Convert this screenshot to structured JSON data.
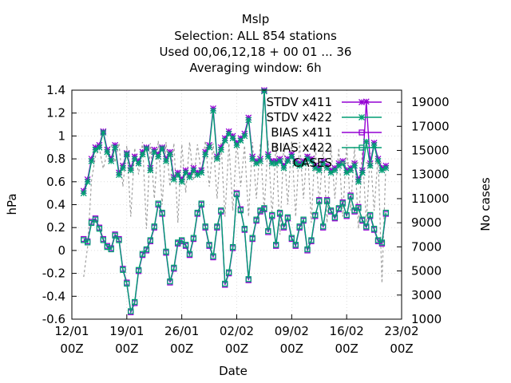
{
  "chart_data": {
    "type": "line",
    "title_lines": [
      "Mslp",
      "Selection: ALL    854 stations",
      "Used  00,06,12,18 + 00 01 ... 36",
      "Averaging window:  6h"
    ],
    "xlabel": "Date",
    "ylabel": "hPa",
    "y2label": "No cases",
    "x_ticks": [
      {
        "value": 0,
        "line1": "12/01",
        "line2": "00Z"
      },
      {
        "value": 7,
        "line1": "19/01",
        "line2": "00Z"
      },
      {
        "value": 14,
        "line1": "26/01",
        "line2": "00Z"
      },
      {
        "value": 21,
        "line1": "02/02",
        "line2": "00Z"
      },
      {
        "value": 28,
        "line1": "09/02",
        "line2": "00Z"
      },
      {
        "value": 35,
        "line1": "16/02",
        "line2": "00Z"
      },
      {
        "value": 42,
        "line1": "23/02",
        "line2": "00Z"
      }
    ],
    "xlim": [
      0,
      42
    ],
    "ylim": [
      -0.6,
      1.4
    ],
    "y_ticks": [
      "-0.6",
      "-0.4",
      "-0.2",
      "0",
      "0.2",
      "0.4",
      "0.6",
      "0.8",
      "1",
      "1.2",
      "1.4"
    ],
    "y2lim": [
      1000,
      20000
    ],
    "y2_ticks": [
      "1000",
      "3000",
      "5000",
      "7000",
      "9000",
      "11000",
      "13000",
      "15000",
      "17000",
      "19000"
    ],
    "legend_position": "top-right",
    "series": [
      {
        "name": "STDV x411",
        "color": "#9400d3",
        "marker": "star",
        "axis": "y1",
        "x": [
          1.5,
          2,
          2.5,
          3,
          3.5,
          4,
          4.5,
          5,
          5.5,
          6,
          6.5,
          7,
          7.5,
          8,
          8.5,
          9,
          9.5,
          10,
          10.5,
          11,
          11.5,
          12,
          12.5,
          13,
          13.5,
          14,
          14.5,
          15,
          15.5,
          16,
          16.5,
          17,
          17.5,
          18,
          18.5,
          19,
          19.5,
          20,
          20.5,
          21,
          21.5,
          22,
          22.5,
          23,
          23.5,
          24,
          24.5,
          25,
          25.5,
          26,
          26.5,
          27,
          27.5,
          28,
          28.5,
          29,
          29.5,
          30,
          30.5,
          31,
          31.5,
          32,
          32.5,
          33,
          33.5,
          34,
          34.5,
          35,
          35.5,
          36,
          36.5,
          37,
          37.5,
          38,
          38.5,
          39,
          39.5,
          40
        ],
        "values": [
          0.52,
          0.62,
          0.8,
          0.9,
          0.92,
          1.04,
          0.88,
          0.8,
          0.92,
          0.68,
          0.74,
          0.85,
          0.72,
          0.82,
          0.78,
          0.86,
          0.9,
          0.72,
          0.88,
          0.84,
          0.9,
          0.8,
          0.86,
          0.64,
          0.68,
          0.62,
          0.7,
          0.66,
          0.72,
          0.68,
          0.7,
          0.86,
          0.92,
          1.24,
          0.82,
          0.9,
          0.98,
          1.04,
          1.0,
          0.94,
          0.98,
          1.02,
          1.16,
          0.82,
          0.78,
          0.8,
          1.4,
          0.84,
          0.78,
          0.78,
          0.8,
          0.74,
          0.8,
          0.84,
          0.78,
          0.76,
          0.78,
          0.82,
          0.8,
          0.74,
          0.72,
          0.78,
          0.74,
          0.7,
          0.72,
          0.76,
          0.78,
          0.7,
          0.72,
          0.76,
          0.62,
          0.7,
          1.3,
          0.76,
          0.94,
          0.8,
          0.72,
          0.74
        ]
      },
      {
        "name": "STDV x422",
        "color": "#009e73",
        "marker": "star",
        "axis": "y1",
        "x": [
          1.5,
          2,
          2.5,
          3,
          3.5,
          4,
          4.5,
          5,
          5.5,
          6,
          6.5,
          7,
          7.5,
          8,
          8.5,
          9,
          9.5,
          10,
          10.5,
          11,
          11.5,
          12,
          12.5,
          13,
          13.5,
          14,
          14.5,
          15,
          15.5,
          16,
          16.5,
          17,
          17.5,
          18,
          18.5,
          19,
          19.5,
          20,
          20.5,
          21,
          21.5,
          22,
          22.5,
          23,
          23.5,
          24,
          24.5,
          25,
          25.5,
          26,
          26.5,
          27,
          27.5,
          28,
          28.5,
          29,
          29.5,
          30,
          30.5,
          31,
          31.5,
          32,
          32.5,
          33,
          33.5,
          34,
          34.5,
          35,
          35.5,
          36,
          36.5,
          37,
          37.5,
          38,
          38.5,
          39,
          39.5,
          40
        ],
        "values": [
          0.5,
          0.6,
          0.78,
          0.88,
          0.9,
          1.03,
          0.86,
          0.78,
          0.9,
          0.66,
          0.72,
          0.84,
          0.7,
          0.8,
          0.76,
          0.84,
          0.89,
          0.7,
          0.86,
          0.82,
          0.89,
          0.78,
          0.84,
          0.62,
          0.66,
          0.6,
          0.68,
          0.64,
          0.7,
          0.66,
          0.68,
          0.84,
          0.9,
          1.22,
          0.8,
          0.88,
          0.96,
          1.02,
          0.98,
          0.92,
          0.96,
          1.0,
          1.14,
          0.8,
          0.76,
          0.78,
          1.39,
          0.82,
          0.76,
          0.76,
          0.78,
          0.72,
          0.78,
          0.82,
          0.76,
          0.74,
          0.76,
          0.8,
          0.78,
          0.72,
          0.7,
          0.76,
          0.72,
          0.68,
          0.7,
          0.74,
          0.76,
          0.68,
          0.7,
          0.74,
          0.6,
          0.68,
          0.95,
          0.74,
          0.92,
          0.78,
          0.7,
          0.72
        ]
      },
      {
        "name": "BIAS x411",
        "color": "#9400d3",
        "marker": "square",
        "axis": "y1",
        "x": [
          1.5,
          2,
          2.5,
          3,
          3.5,
          4,
          4.5,
          5,
          5.5,
          6,
          6.5,
          7,
          7.5,
          8,
          8.5,
          9,
          9.5,
          10,
          10.5,
          11,
          11.5,
          12,
          12.5,
          13,
          13.5,
          14,
          14.5,
          15,
          15.5,
          16,
          16.5,
          17,
          17.5,
          18,
          18.5,
          19,
          19.5,
          20,
          20.5,
          21,
          21.5,
          22,
          22.5,
          23,
          23.5,
          24,
          24.5,
          25,
          25.5,
          26,
          26.5,
          27,
          27.5,
          28,
          28.5,
          29,
          29.5,
          30,
          30.5,
          31,
          31.5,
          32,
          32.5,
          33,
          33.5,
          34,
          34.5,
          35,
          35.5,
          36,
          36.5,
          37,
          37.5,
          38,
          38.5,
          39,
          39.5,
          40
        ],
        "values": [
          0.1,
          0.08,
          0.25,
          0.28,
          0.2,
          0.1,
          0.04,
          0.02,
          0.14,
          0.1,
          -0.16,
          -0.28,
          -0.54,
          -0.46,
          -0.18,
          -0.04,
          0.0,
          0.08,
          0.2,
          0.4,
          0.32,
          -0.02,
          -0.28,
          -0.16,
          0.06,
          0.08,
          0.04,
          -0.04,
          0.1,
          0.32,
          0.4,
          0.2,
          0.04,
          -0.06,
          0.2,
          0.34,
          -0.3,
          -0.2,
          0.02,
          0.5,
          0.36,
          0.18,
          -0.26,
          0.1,
          0.26,
          0.34,
          0.36,
          0.16,
          0.3,
          0.04,
          0.32,
          0.2,
          0.28,
          0.1,
          0.04,
          0.2,
          0.26,
          0.0,
          0.08,
          0.3,
          0.44,
          0.2,
          0.44,
          0.34,
          0.28,
          0.36,
          0.42,
          0.3,
          0.48,
          0.34,
          0.38,
          0.26,
          0.2,
          0.3,
          0.18,
          0.08,
          0.06,
          0.32
        ]
      },
      {
        "name": "BIAS x422",
        "color": "#009e73",
        "marker": "square",
        "axis": "y1",
        "x": [
          1.5,
          2,
          2.5,
          3,
          3.5,
          4,
          4.5,
          5,
          5.5,
          6,
          6.5,
          7,
          7.5,
          8,
          8.5,
          9,
          9.5,
          10,
          10.5,
          11,
          11.5,
          12,
          12.5,
          13,
          13.5,
          14,
          14.5,
          15,
          15.5,
          16,
          16.5,
          17,
          17.5,
          18,
          18.5,
          19,
          19.5,
          20,
          20.5,
          21,
          21.5,
          22,
          22.5,
          23,
          23.5,
          24,
          24.5,
          25,
          25.5,
          26,
          26.5,
          27,
          27.5,
          28,
          28.5,
          29,
          29.5,
          30,
          30.5,
          31,
          31.5,
          32,
          32.5,
          33,
          33.5,
          34,
          34.5,
          35,
          35.5,
          36,
          36.5,
          37,
          37.5,
          38,
          38.5,
          39,
          39.5,
          40
        ],
        "values": [
          0.09,
          0.07,
          0.24,
          0.27,
          0.19,
          0.09,
          0.03,
          0.01,
          0.13,
          0.09,
          -0.17,
          -0.29,
          -0.53,
          -0.45,
          -0.17,
          -0.03,
          0.01,
          0.09,
          0.21,
          0.41,
          0.33,
          -0.01,
          -0.27,
          -0.15,
          0.07,
          0.09,
          0.05,
          -0.03,
          0.11,
          0.33,
          0.41,
          0.21,
          0.05,
          -0.05,
          0.21,
          0.35,
          -0.29,
          -0.19,
          0.03,
          0.49,
          0.35,
          0.19,
          -0.25,
          0.11,
          0.27,
          0.35,
          0.37,
          0.17,
          0.31,
          0.05,
          0.33,
          0.21,
          0.29,
          0.11,
          0.05,
          0.21,
          0.27,
          0.01,
          0.09,
          0.31,
          0.43,
          0.21,
          0.43,
          0.35,
          0.29,
          0.37,
          0.41,
          0.31,
          0.47,
          0.35,
          0.37,
          0.27,
          0.21,
          0.31,
          0.19,
          0.09,
          0.07,
          0.33
        ]
      },
      {
        "name": "CASES",
        "color": "#a0a0a0",
        "marker": "none",
        "dashed": true,
        "axis": "y2",
        "x": [
          1.5,
          2,
          2.5,
          3,
          3.5,
          4,
          4.5,
          5,
          5.5,
          6,
          6.5,
          7,
          7.5,
          8,
          8.5,
          9,
          9.5,
          10,
          10.5,
          11,
          11.5,
          12,
          12.5,
          13,
          13.5,
          14,
          14.5,
          15,
          15.5,
          16,
          16.5,
          17,
          17.5,
          18,
          18.5,
          19,
          19.5,
          20,
          20.5,
          21,
          21.5,
          22,
          22.5,
          23,
          23.5,
          24,
          24.5,
          25,
          25.5,
          26,
          26.5,
          27,
          27.5,
          28,
          28.5,
          29,
          29.5,
          30,
          30.5,
          31,
          31.5,
          32,
          32.5,
          33,
          33.5,
          34,
          34.5,
          35,
          35.5,
          36,
          36.5,
          37,
          37.5,
          38,
          38.5,
          39,
          39.5,
          40
        ],
        "values": [
          4500,
          7000,
          12500,
          14500,
          15200,
          13500,
          14800,
          15500,
          14000,
          15600,
          12000,
          15400,
          9500,
          15200,
          13000,
          15700,
          8500,
          15600,
          11000,
          15800,
          10500,
          15700,
          12000,
          15600,
          9000,
          15500,
          11500,
          15700,
          12500,
          15500,
          13000,
          15800,
          12000,
          15600,
          11000,
          15700,
          9500,
          15600,
          10000,
          15800,
          12000,
          15400,
          9500,
          15700,
          11000,
          15600,
          10000,
          15800,
          9500,
          15500,
          8000,
          15600,
          10500,
          15800,
          9500,
          15700,
          11000,
          15400,
          9000,
          15600,
          10500,
          15300,
          9000,
          15400,
          11000,
          15200,
          9500,
          15500,
          10000,
          15300,
          8500,
          15100,
          9000,
          14800,
          10000,
          14600,
          4000,
          14000
        ]
      }
    ]
  }
}
